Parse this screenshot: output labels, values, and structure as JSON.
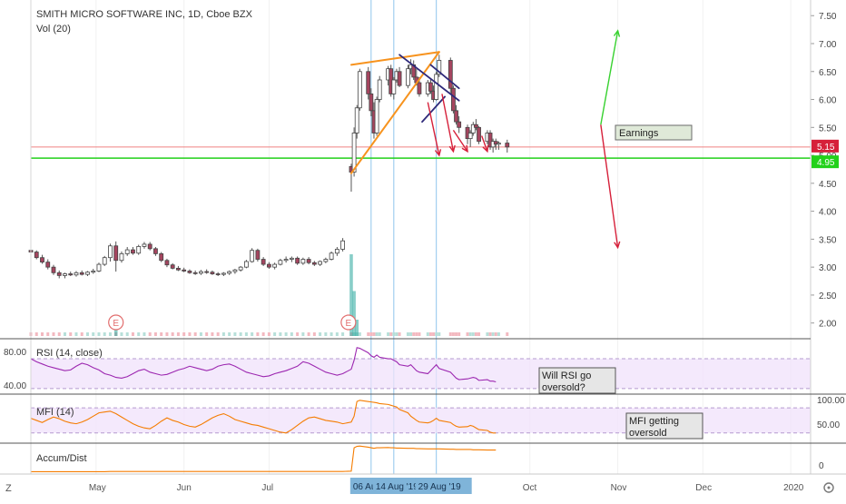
{
  "header": {
    "title": "SMITH MICRO SOFTWARE INC, 1D, Cboe BZX",
    "volume_label": "Vol (20)"
  },
  "colors": {
    "up": "#26a69a",
    "down": "#a5455f",
    "candle_up_fill": "#ffffff",
    "volume_up": "#b7dfd9",
    "volume_down": "#f3b9c0",
    "orange": "#f7931e",
    "navy": "#2f2a7a",
    "red_arrow": "#d6203a",
    "green_arrow": "#37d12f",
    "green_line": "#22d11a",
    "price_line": "#f08080",
    "rsi_line": "#9c27b0",
    "rsi_band": "#f0e2fb",
    "mfi_line": "#f57c00",
    "event_line": "#8fc5ec",
    "date_highlight": "#7fb4d9"
  },
  "chart_data": [
    {
      "type": "candlestick",
      "name": "main",
      "title": "SMITH MICRO SOFTWARE INC, 1D, Cboe BZX",
      "y_ticks": [
        "7.50",
        "7.00",
        "6.50",
        "6.00",
        "5.50",
        "5.00",
        "4.50",
        "4.00",
        "3.50",
        "3.00",
        "2.50",
        "2.00"
      ],
      "ylim": [
        1.8,
        7.65
      ],
      "x_range": [
        "2019-04-08",
        "2020-01-08"
      ],
      "x_ticks": [
        {
          "date": "2019-05-01",
          "label": "May"
        },
        {
          "date": "2019-06-01",
          "label": "Jun"
        },
        {
          "date": "2019-07-01",
          "label": "Jul"
        },
        {
          "date": "2019-08-06",
          "label": "06 Aug '19",
          "highlight": true
        },
        {
          "date": "2019-08-14",
          "label": "14 Aug '19",
          "highlight": true
        },
        {
          "date": "2019-08-29",
          "label": "29 Aug '19",
          "highlight": true
        },
        {
          "date": "2019-10-01",
          "label": "Oct"
        },
        {
          "date": "2019-11-01",
          "label": "Nov"
        },
        {
          "date": "2019-12-01",
          "label": "Dec"
        },
        {
          "date": "2020-01-01",
          "label": "2020"
        }
      ],
      "price_labels": [
        {
          "value": 5.15,
          "label": "5.15",
          "color": "#d6203a"
        },
        {
          "value": 4.95,
          "label": "4.95",
          "color": "#22d11a"
        }
      ],
      "horizontal_lines": [
        {
          "value": 5.15,
          "color": "#f08080"
        },
        {
          "value": 4.95,
          "color": "#22d11a"
        }
      ],
      "event_lines": [
        "2019-08-06",
        "2019-08-14",
        "2019-08-29"
      ],
      "earnings_markers": [
        {
          "date": "2019-05-08",
          "label": "E"
        },
        {
          "date": "2019-07-29",
          "label": "E"
        }
      ],
      "ohlc": [
        [
          "2019-04-08",
          3.3,
          3.33,
          3.24,
          3.27
        ],
        [
          "2019-04-10",
          3.27,
          3.3,
          3.14,
          3.17
        ],
        [
          "2019-04-12",
          3.17,
          3.22,
          3.06,
          3.09
        ],
        [
          "2019-04-14",
          3.09,
          3.14,
          2.96,
          3.0
        ],
        [
          "2019-04-16",
          3.0,
          3.04,
          2.86,
          2.9
        ],
        [
          "2019-04-18",
          2.9,
          2.94,
          2.8,
          2.85
        ],
        [
          "2019-04-20",
          2.85,
          2.9,
          2.8,
          2.88
        ],
        [
          "2019-04-22",
          2.88,
          2.92,
          2.84,
          2.86
        ],
        [
          "2019-04-24",
          2.86,
          2.93,
          2.83,
          2.9
        ],
        [
          "2019-04-26",
          2.9,
          2.94,
          2.85,
          2.87
        ],
        [
          "2019-04-28",
          2.87,
          2.93,
          2.84,
          2.91
        ],
        [
          "2019-04-30",
          2.91,
          2.97,
          2.88,
          2.93
        ],
        [
          "2019-05-02",
          2.93,
          3.08,
          2.91,
          3.05
        ],
        [
          "2019-05-04",
          3.05,
          3.2,
          3.02,
          3.17
        ],
        [
          "2019-05-06",
          3.17,
          3.42,
          3.1,
          3.38
        ],
        [
          "2019-05-08",
          3.38,
          3.46,
          2.92,
          3.12
        ],
        [
          "2019-05-10",
          3.12,
          3.28,
          3.08,
          3.24
        ],
        [
          "2019-05-12",
          3.24,
          3.36,
          3.2,
          3.31
        ],
        [
          "2019-05-14",
          3.31,
          3.36,
          3.22,
          3.25
        ],
        [
          "2019-05-16",
          3.25,
          3.4,
          3.22,
          3.37
        ],
        [
          "2019-05-18",
          3.37,
          3.45,
          3.33,
          3.41
        ],
        [
          "2019-05-20",
          3.41,
          3.45,
          3.3,
          3.33
        ],
        [
          "2019-05-22",
          3.33,
          3.36,
          3.2,
          3.24
        ],
        [
          "2019-05-24",
          3.24,
          3.27,
          3.09,
          3.12
        ],
        [
          "2019-05-26",
          3.12,
          3.15,
          3.0,
          3.04
        ],
        [
          "2019-05-28",
          3.04,
          3.07,
          2.96,
          2.98
        ],
        [
          "2019-05-30",
          2.98,
          3.02,
          2.93,
          2.95
        ],
        [
          "2019-06-01",
          2.95,
          2.99,
          2.91,
          2.93
        ],
        [
          "2019-06-03",
          2.93,
          2.96,
          2.88,
          2.9
        ],
        [
          "2019-06-05",
          2.9,
          2.94,
          2.86,
          2.89
        ],
        [
          "2019-06-07",
          2.89,
          2.95,
          2.86,
          2.92
        ],
        [
          "2019-06-09",
          2.92,
          2.96,
          2.88,
          2.91
        ],
        [
          "2019-06-11",
          2.91,
          2.94,
          2.86,
          2.88
        ],
        [
          "2019-06-13",
          2.88,
          2.91,
          2.84,
          2.87
        ],
        [
          "2019-06-15",
          2.87,
          2.91,
          2.84,
          2.89
        ],
        [
          "2019-06-17",
          2.89,
          2.94,
          2.86,
          2.92
        ],
        [
          "2019-06-19",
          2.92,
          2.97,
          2.88,
          2.95
        ],
        [
          "2019-06-21",
          2.95,
          3.02,
          2.92,
          3.0
        ],
        [
          "2019-06-23",
          3.0,
          3.13,
          2.98,
          3.1
        ],
        [
          "2019-06-25",
          3.1,
          3.34,
          3.08,
          3.3
        ],
        [
          "2019-06-27",
          3.3,
          3.33,
          3.1,
          3.14
        ],
        [
          "2019-06-29",
          3.14,
          3.18,
          3.02,
          3.05
        ],
        [
          "2019-07-01",
          3.05,
          3.09,
          2.97,
          3.0
        ],
        [
          "2019-07-03",
          3.0,
          3.08,
          2.96,
          3.05
        ],
        [
          "2019-07-05",
          3.05,
          3.15,
          3.03,
          3.12
        ],
        [
          "2019-07-07",
          3.12,
          3.19,
          3.08,
          3.14
        ],
        [
          "2019-07-09",
          3.14,
          3.19,
          3.09,
          3.16
        ],
        [
          "2019-07-11",
          3.16,
          3.19,
          3.04,
          3.07
        ],
        [
          "2019-07-13",
          3.07,
          3.17,
          3.04,
          3.14
        ],
        [
          "2019-07-15",
          3.14,
          3.18,
          3.05,
          3.08
        ],
        [
          "2019-07-17",
          3.08,
          3.11,
          3.02,
          3.05
        ],
        [
          "2019-07-19",
          3.05,
          3.12,
          3.02,
          3.1
        ],
        [
          "2019-07-21",
          3.1,
          3.17,
          3.07,
          3.14
        ],
        [
          "2019-07-23",
          3.14,
          3.28,
          3.12,
          3.25
        ],
        [
          "2019-07-25",
          3.25,
          3.36,
          3.2,
          3.32
        ],
        [
          "2019-07-27",
          3.32,
          3.52,
          3.28,
          3.47
        ],
        [
          "2019-07-30",
          4.8,
          4.85,
          4.35,
          4.7
        ],
        [
          "2019-07-31",
          4.7,
          5.5,
          4.62,
          5.4
        ],
        [
          "2019-08-01",
          5.4,
          5.9,
          5.3,
          5.85
        ],
        [
          "2019-08-02",
          5.85,
          6.55,
          5.8,
          6.5
        ],
        [
          "2019-08-05",
          6.5,
          6.58,
          6.0,
          6.1
        ],
        [
          "2019-08-06",
          6.1,
          6.2,
          5.7,
          5.8
        ],
        [
          "2019-08-07",
          5.8,
          5.95,
          5.3,
          5.4
        ],
        [
          "2019-08-08",
          5.4,
          6.05,
          5.35,
          6.0
        ],
        [
          "2019-08-09",
          6.0,
          6.42,
          5.95,
          6.35
        ],
        [
          "2019-08-12",
          6.35,
          6.6,
          6.25,
          6.55
        ],
        [
          "2019-08-13",
          6.55,
          6.62,
          6.05,
          6.1
        ],
        [
          "2019-08-14",
          6.1,
          6.4,
          6.0,
          6.35
        ],
        [
          "2019-08-15",
          6.35,
          6.55,
          6.3,
          6.5
        ],
        [
          "2019-08-16",
          6.5,
          6.58,
          6.22,
          6.25
        ],
        [
          "2019-08-19",
          6.25,
          6.62,
          6.2,
          6.55
        ],
        [
          "2019-08-20",
          6.55,
          6.72,
          6.45,
          6.62
        ],
        [
          "2019-08-21",
          6.62,
          6.7,
          6.35,
          6.4
        ],
        [
          "2019-08-22",
          6.4,
          6.55,
          6.25,
          6.3
        ],
        [
          "2019-08-23",
          6.3,
          6.4,
          6.05,
          6.1
        ],
        [
          "2019-08-26",
          6.1,
          6.35,
          6.05,
          6.3
        ],
        [
          "2019-08-27",
          6.3,
          6.38,
          6.1,
          6.15
        ],
        [
          "2019-08-28",
          6.15,
          6.25,
          5.95,
          6.0
        ],
        [
          "2019-08-29",
          6.0,
          6.5,
          5.98,
          6.45
        ],
        [
          "2019-08-30",
          6.45,
          6.8,
          6.4,
          6.7
        ],
        [
          "2019-09-03",
          6.7,
          6.75,
          6.1,
          6.2
        ],
        [
          "2019-09-04",
          6.2,
          6.25,
          5.75,
          5.8
        ],
        [
          "2019-09-05",
          5.8,
          5.9,
          5.55,
          5.6
        ],
        [
          "2019-09-06",
          5.6,
          5.7,
          5.4,
          5.5
        ],
        [
          "2019-09-09",
          5.5,
          5.55,
          5.2,
          5.3
        ],
        [
          "2019-09-10",
          5.3,
          5.45,
          5.15,
          5.4
        ],
        [
          "2019-09-11",
          5.4,
          5.6,
          5.35,
          5.55
        ],
        [
          "2019-09-12",
          5.55,
          5.65,
          5.45,
          5.5
        ],
        [
          "2019-09-13",
          5.5,
          5.52,
          5.2,
          5.25
        ],
        [
          "2019-09-16",
          5.25,
          5.45,
          5.2,
          5.4
        ],
        [
          "2019-09-17",
          5.4,
          5.45,
          5.1,
          5.15
        ],
        [
          "2019-09-18",
          5.15,
          5.3,
          5.05,
          5.25
        ],
        [
          "2019-09-19",
          5.25,
          5.3,
          5.1,
          5.2
        ],
        [
          "2019-09-20",
          5.2,
          5.25,
          5.1,
          5.22
        ],
        [
          "2019-09-23",
          5.22,
          5.28,
          5.05,
          5.15
        ]
      ],
      "volume_spikes": [
        {
          "date": "2019-05-08",
          "value": 0.12
        },
        {
          "date": "2019-07-30",
          "value": 1.0
        },
        {
          "date": "2019-07-31",
          "value": 0.55
        },
        {
          "date": "2019-08-01",
          "value": 0.2
        }
      ],
      "drawings": {
        "orange_upper": [
          [
            "2019-07-30",
            6.62
          ],
          [
            "2019-08-30",
            6.85
          ]
        ],
        "orange_lower": [
          [
            "2019-07-30",
            4.68
          ],
          [
            "2019-08-30",
            6.85
          ]
        ],
        "navy_upper": [
          [
            "2019-08-16",
            6.8
          ],
          [
            "2019-09-06",
            5.98
          ]
        ],
        "navy_lower": [
          [
            "2019-08-24",
            5.6
          ],
          [
            "2019-09-01",
            6.05
          ]
        ],
        "navy_short": [
          [
            "2019-08-27",
            6.62
          ],
          [
            "2019-09-06",
            6.2
          ]
        ],
        "red_arrows": [
          [
            [
              "2019-08-26",
              5.95
            ],
            [
              "2019-08-30",
              5.0
            ]
          ],
          [
            [
              "2019-08-31",
              6.1
            ],
            [
              "2019-09-04",
              5.07
            ]
          ],
          [
            [
              "2019-09-04",
              5.45
            ],
            [
              "2019-09-09",
              5.07
            ]
          ],
          [
            [
              "2019-09-14",
              5.35
            ],
            [
              "2019-09-16",
              5.07
            ]
          ],
          [
            [
              "2019-10-26",
              5.55
            ],
            [
              "2019-11-01",
              3.35
            ]
          ]
        ],
        "green_arrow": [
          [
            "2019-10-26",
            5.55
          ],
          [
            "2019-11-01",
            7.23
          ]
        ]
      },
      "annotation": {
        "text": "Earnings",
        "date": "2019-10-26",
        "value": 5.55
      }
    },
    {
      "type": "line",
      "name": "RSI",
      "label": "RSI (14, close)",
      "y_ticks": [
        "80.00",
        "40.00"
      ],
      "band": [
        30,
        70
      ],
      "values": [
        70,
        66,
        63,
        60,
        58,
        56,
        54,
        55,
        60,
        64,
        62,
        58,
        55,
        50,
        48,
        45,
        44,
        46,
        50,
        54,
        56,
        52,
        50,
        48,
        49,
        52,
        55,
        57,
        60,
        58,
        56,
        54,
        56,
        60,
        62,
        63,
        60,
        56,
        52,
        50,
        48,
        46,
        47,
        50,
        52,
        54,
        57,
        60,
        66,
        64,
        60,
        56,
        52,
        50,
        48,
        50,
        56,
        68,
        85,
        84,
        78,
        74,
        72,
        75,
        72,
        70,
        70,
        68,
        66,
        62,
        60,
        62,
        58,
        54,
        52,
        50,
        54,
        58,
        62,
        57,
        52,
        48,
        44,
        42,
        43,
        44,
        45,
        44,
        41,
        42,
        40,
        40,
        39
      ],
      "annotation": {
        "text": [
          "Will RSI go",
          "oversold?"
        ]
      }
    },
    {
      "type": "line",
      "name": "MFI",
      "label": "MFI (14)",
      "y_ticks": [
        "100.00",
        "50.00"
      ],
      "band": [
        20,
        80
      ],
      "values": [
        55,
        50,
        45,
        52,
        58,
        54,
        48,
        44,
        42,
        46,
        52,
        60,
        68,
        70,
        72,
        66,
        58,
        50,
        42,
        36,
        32,
        30,
        38,
        48,
        56,
        50,
        46,
        40,
        36,
        34,
        40,
        48,
        56,
        62,
        66,
        60,
        52,
        48,
        44,
        40,
        38,
        34,
        30,
        26,
        22,
        20,
        28,
        38,
        48,
        56,
        58,
        54,
        50,
        48,
        46,
        42,
        46,
        60,
        95,
        98,
        95,
        94,
        93,
        92,
        90,
        88,
        86,
        84,
        82,
        76,
        68,
        60,
        55,
        50,
        46,
        44,
        46,
        50,
        55,
        50,
        45,
        40,
        36,
        34,
        35,
        38,
        36,
        32,
        28,
        26,
        22,
        20,
        20
      ],
      "annotation": {
        "text": [
          "MFI getting",
          "oversold"
        ]
      }
    },
    {
      "type": "line",
      "name": "Accum/Dist",
      "label": "Accum/Dist",
      "y_ticks": [
        "0"
      ],
      "values": [
        0.05,
        0.05,
        0.05,
        0.05,
        0.05,
        0.05,
        0.05,
        0.05,
        0.05,
        0.05,
        0.05,
        0.05,
        0.05,
        0.05,
        0.06,
        0.06,
        0.06,
        0.06,
        0.06,
        0.06,
        0.06,
        0.06,
        0.06,
        0.06,
        0.06,
        0.06,
        0.06,
        0.06,
        0.06,
        0.06,
        0.06,
        0.06,
        0.06,
        0.06,
        0.06,
        0.06,
        0.06,
        0.06,
        0.06,
        0.06,
        0.06,
        0.06,
        0.06,
        0.06,
        0.06,
        0.06,
        0.06,
        0.06,
        0.06,
        0.06,
        0.06,
        0.06,
        0.06,
        0.06,
        0.06,
        0.06,
        0.07,
        0.9,
        0.95,
        0.96,
        0.92,
        0.9,
        0.88,
        0.9,
        0.9,
        0.91,
        0.9,
        0.9,
        0.89,
        0.89,
        0.88,
        0.88,
        0.88,
        0.87,
        0.87,
        0.86,
        0.86,
        0.86,
        0.86,
        0.86,
        0.85,
        0.85,
        0.84,
        0.84,
        0.84,
        0.84,
        0.83,
        0.83,
        0.83,
        0.82,
        0.82,
        0.82,
        0.82
      ]
    }
  ],
  "footer": {
    "left_badge": "Z"
  }
}
